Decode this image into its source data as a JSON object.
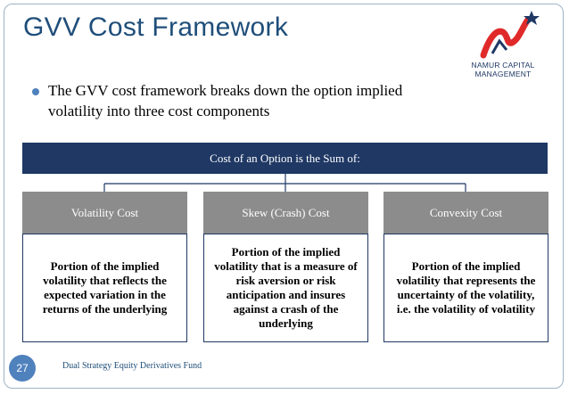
{
  "slide": {
    "title": "GVV Cost Framework",
    "bullet": "The GVV cost framework breaks down the option implied volatility into three cost components",
    "page_number": "27",
    "footer": "Dual Strategy Equity Derivatives Fund"
  },
  "logo": {
    "line1": "NAMUR CAPITAL",
    "line2": "MANAGEMENT",
    "colors": {
      "red": "#e02a2a",
      "blue": "#1f3864"
    }
  },
  "diagram": {
    "root": "Cost of an Option is the Sum of:",
    "components": [
      {
        "name": "Volatility Cost",
        "description": "Portion of the implied volatility that reflects the expected variation in the returns of the underlying"
      },
      {
        "name": "Skew (Crash) Cost",
        "description": "Portion of the implied volatility that is a measure of risk aversion or risk anticipation and insures against a crash of the underlying"
      },
      {
        "name": "Convexity Cost",
        "description": "Portion of the implied volatility that represents the uncertainty of the volatility, i.e. the volatility of volatility"
      }
    ]
  },
  "colors": {
    "title": "#1f4e79",
    "bar": "#1f3864",
    "header": "#8c8c8c",
    "bullet": "#4f81bd"
  }
}
